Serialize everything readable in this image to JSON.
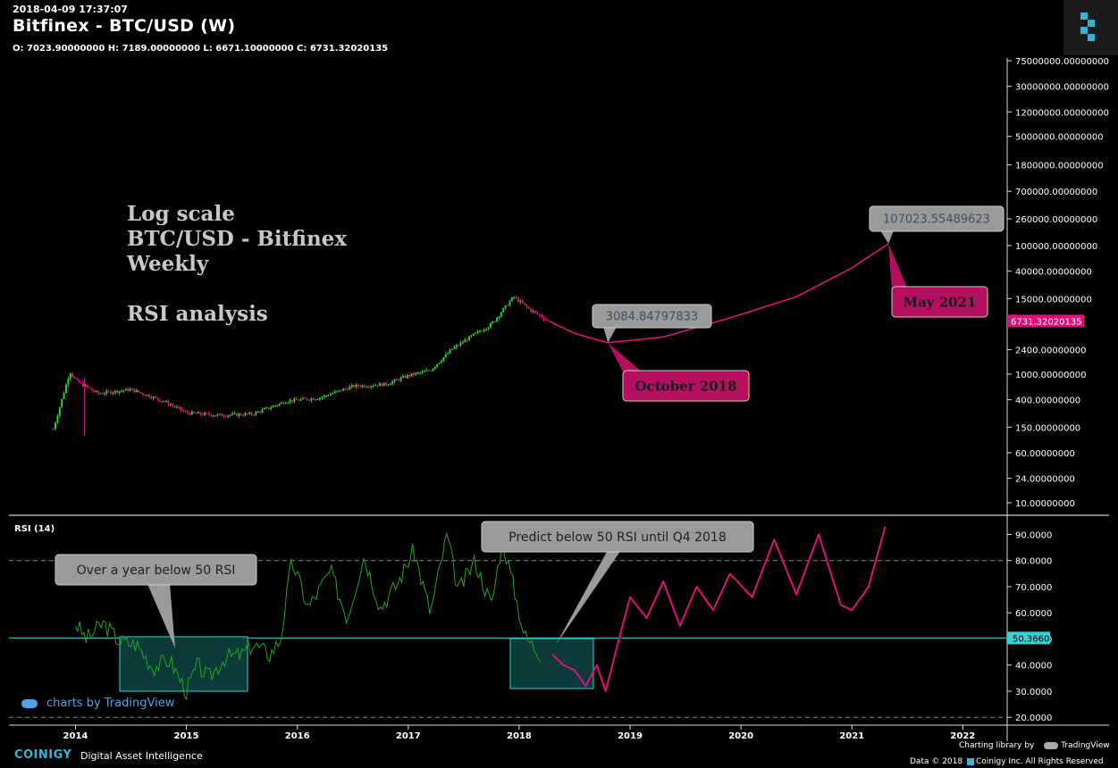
{
  "header": {
    "timestamp": "2018-04-09 17:37:07",
    "title": "Bitfinex - BTC/USD (W)",
    "ohlc": "O: 7023.90000000 H: 7189.00000000 L: 6671.10000000 C: 6731.32020135"
  },
  "annotations": {
    "line1": "Log scale",
    "line2": "BTC/USD - Bitfinex",
    "line3": "Weekly",
    "line4": "RSI analysis"
  },
  "callouts": {
    "low_value": "3084.84797833",
    "low_label": "October 2018",
    "high_value": "107023.55489623",
    "high_label": "May 2021",
    "rsi_past": "Over a year below 50 RSI",
    "rsi_predict": "Predict below 50 RSI until Q4 2018"
  },
  "rsi_panel": {
    "label": "RSI (14)",
    "current_value": "50.3660"
  },
  "price_current": "6731.32020135",
  "footer": {
    "tv_mark": "charts by TradingView",
    "brand": "COINIGY",
    "tagline": "Digital Asset Intelligence",
    "library": "Charting library by",
    "library_brand": "TradingView",
    "rights": "Data © 2018",
    "rights_brand": "Coinigy Inc. All Rights Reserved"
  },
  "colors": {
    "up": "#2ecc2e",
    "down": "#e0107a",
    "projection": "#e0107a",
    "rsi_line": "#1fa61f",
    "rsi_50_line": "#35d2d2",
    "callout_grey": "#9a9a9a",
    "callout_magenta": "#b5105f"
  },
  "chart_data": [
    {
      "type": "line",
      "scale": "log",
      "title": "Bitfinex - BTC/USD (W)",
      "y_tick_labels": [
        "75000000.00000000",
        "30000000.00000000",
        "12000000.00000000",
        "5000000.00000000",
        "1800000.00000000",
        "700000.00000000",
        "260000.00000000",
        "100000.00000000",
        "40000.00000000",
        "15000.00000000",
        "2400.00000000",
        "1000.00000000",
        "400.00000000",
        "150.00000000",
        "60.00000000",
        "24.00000000",
        "10.00000000"
      ],
      "x_tick_labels": [
        "2014",
        "2015",
        "2016",
        "2017",
        "2018",
        "2019",
        "2020",
        "2021",
        "2022"
      ],
      "series": [
        {
          "name": "",
          "x": [
            2013.8,
            2013.95,
            2014.0,
            2014.2,
            2014.5,
            2014.8,
            2015.0,
            2015.3,
            2015.6,
            2015.9,
            2016.2,
            2016.5,
            2016.8,
            2017.0,
            2017.2,
            2017.4,
            2017.6,
            2017.75,
            2017.95,
            2018.1,
            2018.27
          ],
          "y": [
            140,
            1100,
            800,
            500,
            580,
            380,
            250,
            230,
            240,
            380,
            430,
            650,
            700,
            950,
            1150,
            2500,
            4200,
            6000,
            16000,
            10000,
            6700
          ]
        },
        {
          "name": "",
          "x": [
            2018.27,
            2018.5,
            2018.8,
            2019.3,
            2019.9,
            2020.5,
            2021.0,
            2021.33
          ],
          "y": [
            6700,
            4300,
            3085,
            3800,
            7500,
            16000,
            45000,
            107000
          ]
        }
      ],
      "x_range": [
        2013.4,
        2022.4
      ]
    },
    {
      "type": "line",
      "title": "RSI (14)",
      "y_tick_labels": [
        "90.0000",
        "80.0000",
        "70.0000",
        "60.0000",
        "50.0000",
        "40.0000",
        "30.0000",
        "20.0000"
      ],
      "ylim": [
        17,
        97
      ],
      "reference_lines": [
        80,
        20
      ],
      "series": [
        {
          "name": "",
          "x": [
            2014.0,
            2014.1,
            2014.25,
            2014.4,
            2014.55,
            2014.7,
            2014.85,
            2015.0,
            2015.1,
            2015.2,
            2015.35,
            2015.5,
            2015.6,
            2015.75,
            2015.85,
            2015.95,
            2016.1,
            2016.3,
            2016.45,
            2016.6,
            2016.75,
            2016.9,
            2017.05,
            2017.2,
            2017.35,
            2017.45,
            2017.6,
            2017.75,
            2017.85,
            2017.95,
            2018.05,
            2018.2
          ],
          "y": [
            56,
            50,
            56,
            49,
            48,
            39,
            42,
            30,
            40,
            35,
            43,
            44,
            48,
            44,
            50,
            80,
            62,
            76,
            58,
            82,
            62,
            71,
            84,
            60,
            90,
            68,
            80,
            63,
            88,
            70,
            51,
            44
          ]
        },
        {
          "name": "",
          "x": [
            2018.3,
            2018.4,
            2018.5,
            2018.6,
            2018.7,
            2018.78,
            2018.9,
            2019.0,
            2019.15,
            2019.3,
            2019.45,
            2019.6,
            2019.75,
            2019.9,
            2020.1,
            2020.3,
            2020.5,
            2020.7,
            2020.9,
            2021.0,
            2021.15,
            2021.3
          ],
          "y": [
            44,
            40,
            38,
            32,
            40,
            30,
            50,
            66,
            58,
            72,
            55,
            70,
            61,
            75,
            66,
            88,
            67,
            90,
            63,
            61,
            70,
            93
          ]
        }
      ],
      "x_range": [
        2013.4,
        2022.4
      ]
    }
  ]
}
